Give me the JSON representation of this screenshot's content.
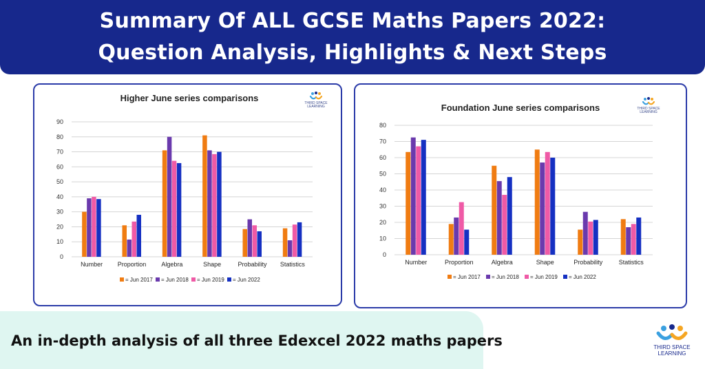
{
  "header": {
    "title_line1": "Summary Of ALL GCSE Maths Papers 2022:",
    "title_line2": "Question Analysis, Highlights & Next Steps"
  },
  "brand": {
    "line1": "THIRD SPACE",
    "line2": "LEARNING",
    "colors": [
      "#f5a623",
      "#3aa0e0",
      "#17288c"
    ]
  },
  "footer": {
    "text": "An in-depth analysis of all three Edexcel 2022 maths papers"
  },
  "series_colors": [
    "#f07c12",
    "#6a3aad",
    "#ef5aa6",
    "#1530c2"
  ],
  "chart_data": [
    {
      "type": "bar",
      "title": "Higher June series comparisons",
      "categories": [
        "Number",
        "Proportion",
        "Algebra",
        "Shape",
        "Probability",
        "Statistics"
      ],
      "ylim": [
        0,
        90
      ],
      "yticks": [
        0,
        10,
        20,
        30,
        40,
        50,
        60,
        70,
        80,
        90
      ],
      "grid": true,
      "legend_position": "bottom",
      "series": [
        {
          "name": "= Jun 2017",
          "values": [
            30,
            21,
            71,
            81,
            18.5,
            19
          ]
        },
        {
          "name": "= Jun 2018",
          "values": [
            39,
            11.5,
            80,
            71,
            25,
            11
          ]
        },
        {
          "name": "= Jun 2019",
          "values": [
            40,
            23.5,
            64,
            68.5,
            21,
            21.5
          ]
        },
        {
          "name": "= Jun 2022",
          "values": [
            38.5,
            28,
            62.5,
            70,
            17,
            23
          ]
        }
      ]
    },
    {
      "type": "bar",
      "title": "Foundation June series comparisons",
      "categories": [
        "Number",
        "Proportion",
        "Algebra",
        "Shape",
        "Probability",
        "Statistics"
      ],
      "ylim": [
        0,
        80
      ],
      "yticks": [
        0,
        10,
        20,
        30,
        40,
        50,
        60,
        70,
        80
      ],
      "grid": true,
      "legend_position": "bottom",
      "series": [
        {
          "name": "= Jun 2017",
          "values": [
            63.5,
            19,
            55,
            65,
            15.5,
            22
          ]
        },
        {
          "name": "= Jun 2018",
          "values": [
            72.5,
            23,
            45.5,
            57,
            26.5,
            17
          ]
        },
        {
          "name": "= Jun 2019",
          "values": [
            67,
            32.5,
            37,
            63.5,
            20.5,
            19
          ]
        },
        {
          "name": "= Jun 2022",
          "values": [
            71,
            15.5,
            48,
            60,
            21.5,
            23
          ]
        }
      ]
    }
  ]
}
